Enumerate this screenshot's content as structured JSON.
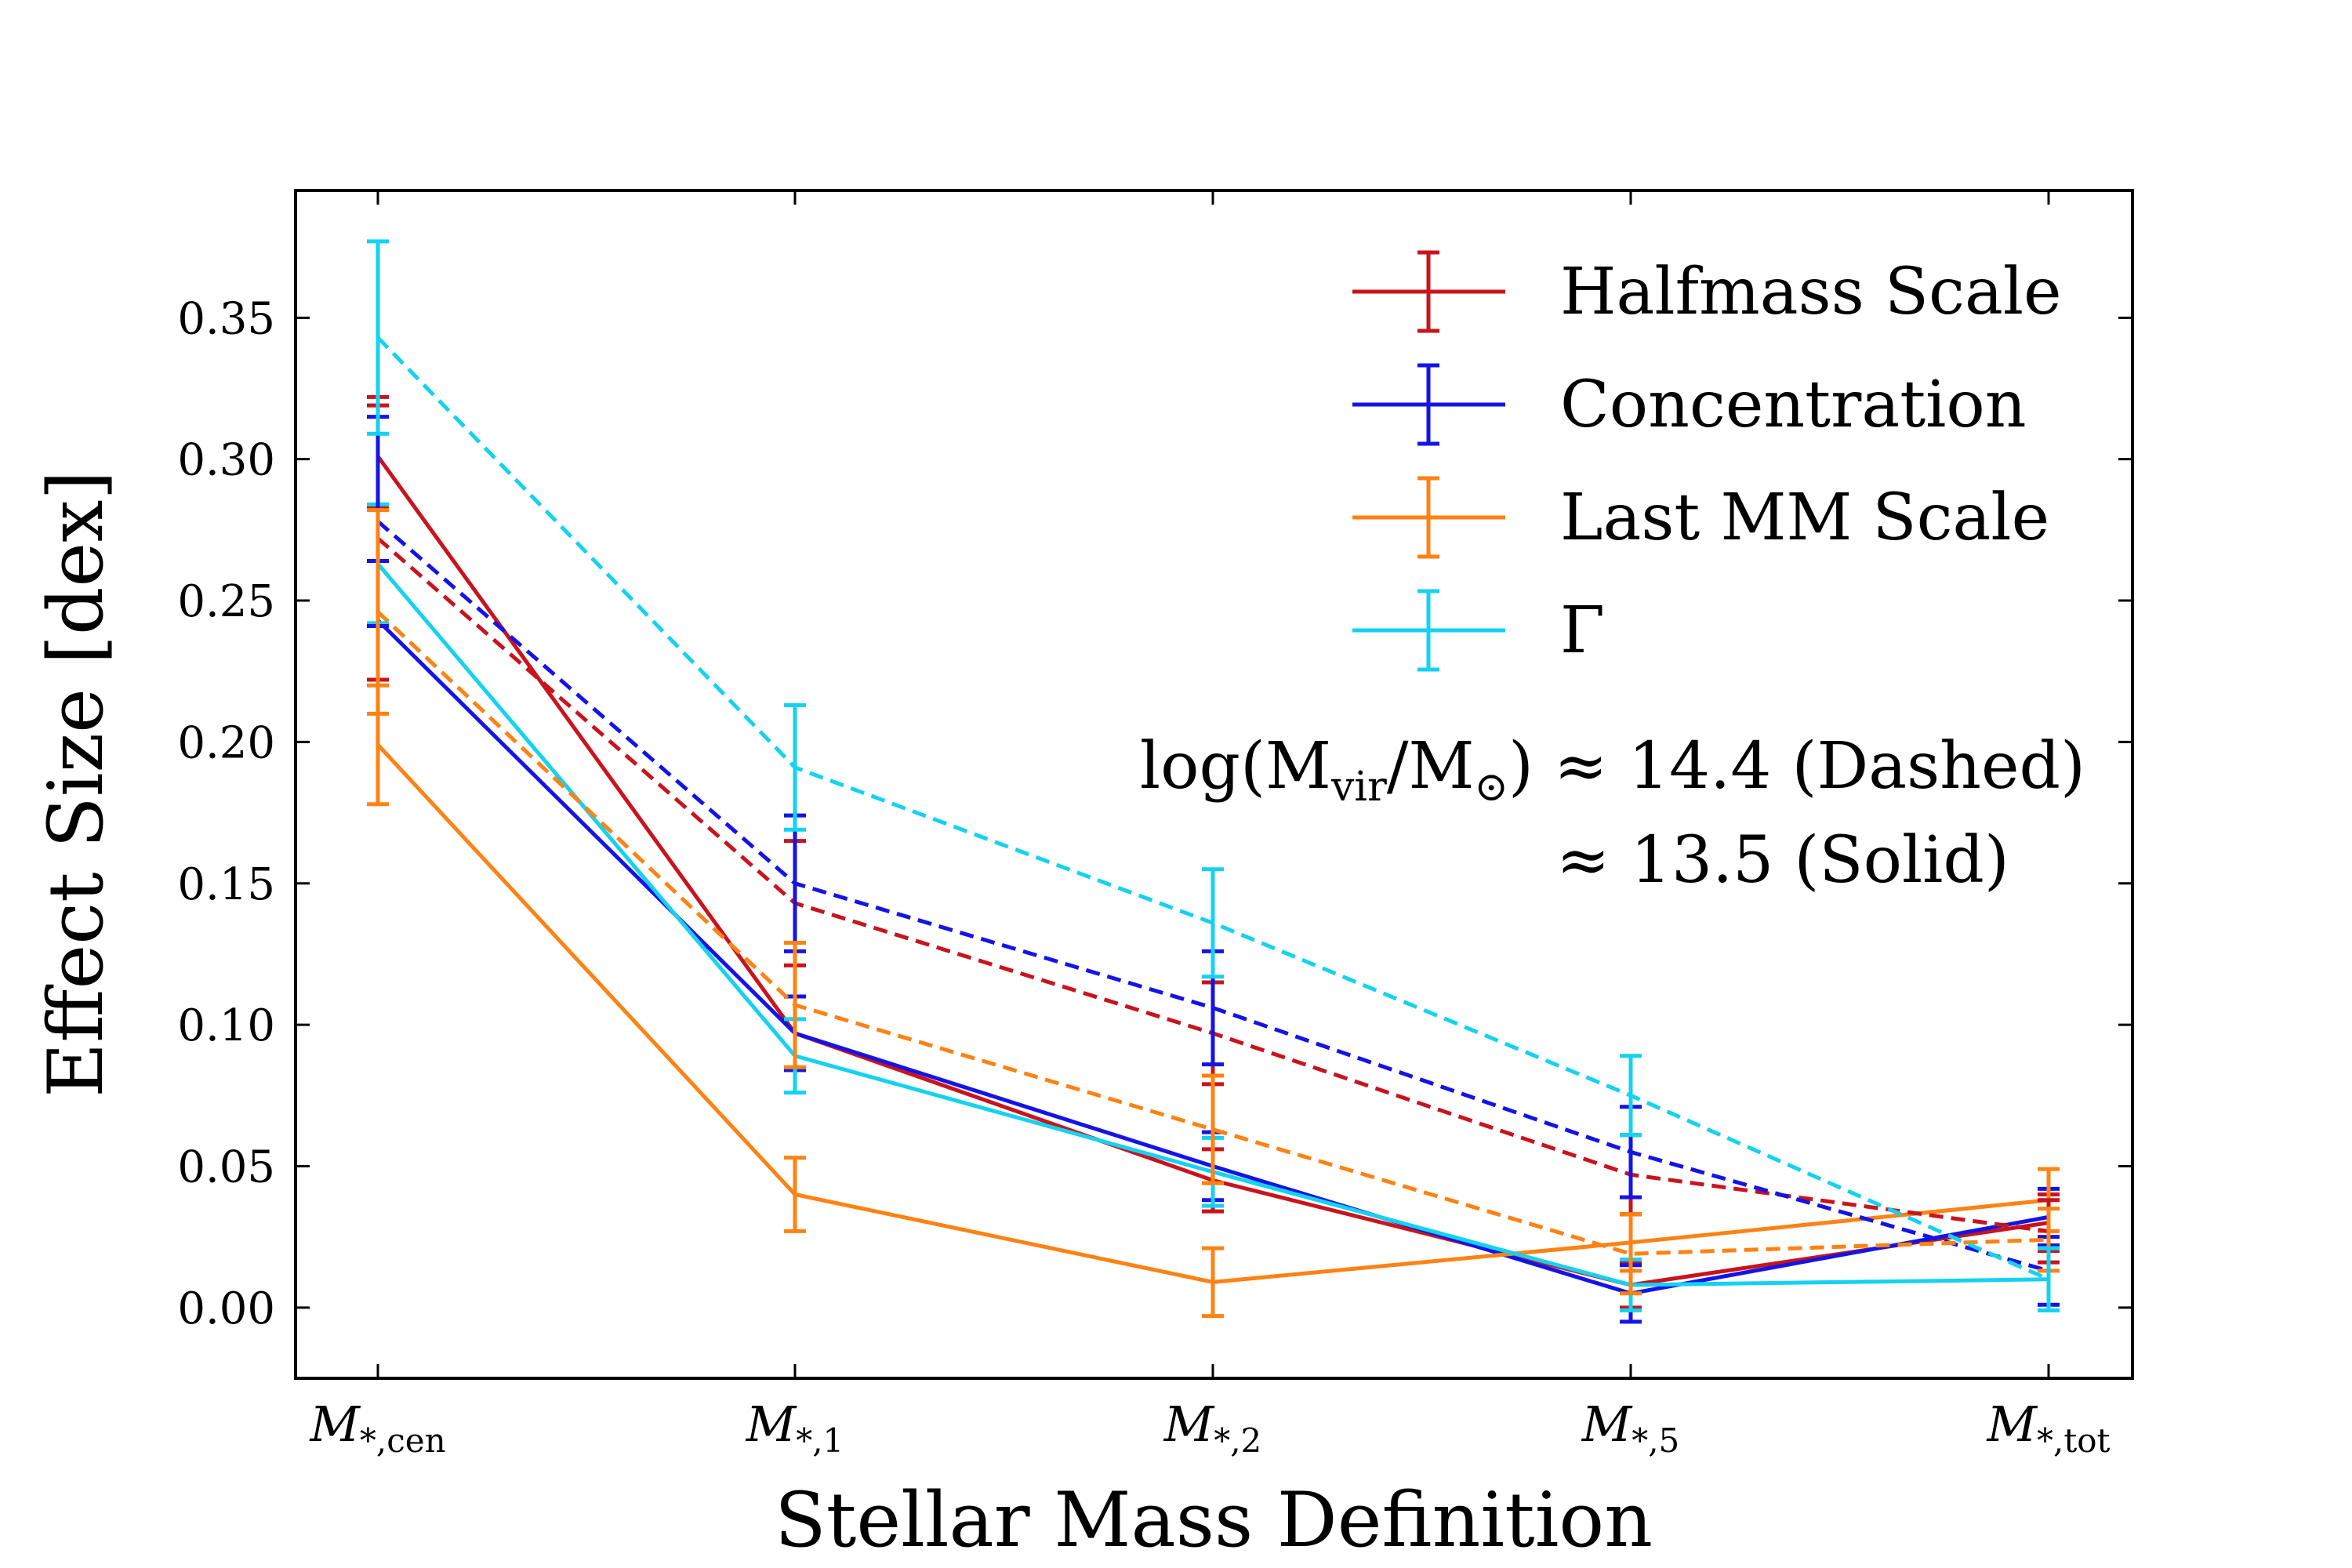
{
  "chart_data": {
    "type": "line",
    "xlabel": "Stellar Mass Definition",
    "ylabel": "Effect Size [dex]",
    "ylim": [
      -0.025,
      0.395
    ],
    "yticks": [
      "0.00",
      "0.05",
      "0.10",
      "0.15",
      "0.20",
      "0.25",
      "0.30",
      "0.35"
    ],
    "categories": [
      {
        "base": "M",
        "sub": "*,cen"
      },
      {
        "base": "M",
        "sub": "*,1"
      },
      {
        "base": "M",
        "sub": "*,2"
      },
      {
        "base": "M",
        "sub": "*,5"
      },
      {
        "base": "M",
        "sub": "*,tot"
      }
    ],
    "legend": {
      "location": "upper right",
      "entries": [
        {
          "label": "Halfmass Scale",
          "color": "#c8141e"
        },
        {
          "label": "Concentration",
          "color": "#1414e6"
        },
        {
          "label": "Last MM Scale",
          "color": "#ff8214"
        },
        {
          "label": "Γ",
          "color": "#14d2f0"
        }
      ]
    },
    "annotation": {
      "line1_prefix": "log(M",
      "line1_sub1": "vir",
      "line1_mid": "/M",
      "line1_sub2": "⊙",
      "line1_suffix": ") ≈ 14.4 (Dashed)",
      "line2": "≈ 13.5 (Solid)"
    },
    "series": [
      {
        "name": "Halfmass Scale",
        "mass": "13.5",
        "style": "solid",
        "color": "#c8141e",
        "values": [
          0.301,
          0.097,
          0.045,
          0.008,
          0.03
        ],
        "errors": [
          0.018,
          0.013,
          0.011,
          0.008,
          0.01
        ]
      },
      {
        "name": "Concentration",
        "mass": "13.5",
        "style": "solid",
        "color": "#1414e6",
        "values": [
          0.243,
          0.097,
          0.05,
          0.005,
          0.032
        ],
        "errors": [
          0.021,
          0.013,
          0.012,
          0.01,
          0.01
        ]
      },
      {
        "name": "Last MM Scale",
        "mass": "13.5",
        "style": "solid",
        "color": "#ff8214",
        "values": [
          0.199,
          0.04,
          0.009,
          0.023,
          0.038
        ],
        "errors": [
          0.021,
          0.013,
          0.012,
          0.01,
          0.011
        ]
      },
      {
        "name": "Γ",
        "mass": "13.5",
        "style": "solid",
        "color": "#14d2f0",
        "values": [
          0.263,
          0.089,
          0.048,
          0.008,
          0.01
        ],
        "errors": [
          0.021,
          0.013,
          0.012,
          0.009,
          0.011
        ]
      },
      {
        "name": "Halfmass Scale",
        "mass": "14.4",
        "style": "dashed",
        "color": "#c8141e",
        "values": [
          0.272,
          0.143,
          0.097,
          0.047,
          0.027
        ],
        "errors": [
          0.05,
          0.022,
          0.018,
          0.014,
          0.011
        ]
      },
      {
        "name": "Concentration",
        "mass": "14.4",
        "style": "dashed",
        "color": "#1414e6",
        "values": [
          0.278,
          0.15,
          0.106,
          0.055,
          0.013
        ],
        "errors": [
          0.037,
          0.024,
          0.02,
          0.016,
          0.012
        ]
      },
      {
        "name": "Last MM Scale",
        "mass": "14.4",
        "style": "dashed",
        "color": "#ff8214",
        "values": [
          0.246,
          0.107,
          0.063,
          0.019,
          0.024
        ],
        "errors": [
          0.036,
          0.022,
          0.019,
          0.014,
          0.011
        ]
      },
      {
        "name": "Γ",
        "mass": "14.4",
        "style": "dashed",
        "color": "#14d2f0",
        "values": [
          0.343,
          0.191,
          0.136,
          0.075,
          0.01
        ],
        "errors": [
          0.034,
          0.022,
          0.019,
          0.014,
          0.011
        ]
      }
    ]
  }
}
